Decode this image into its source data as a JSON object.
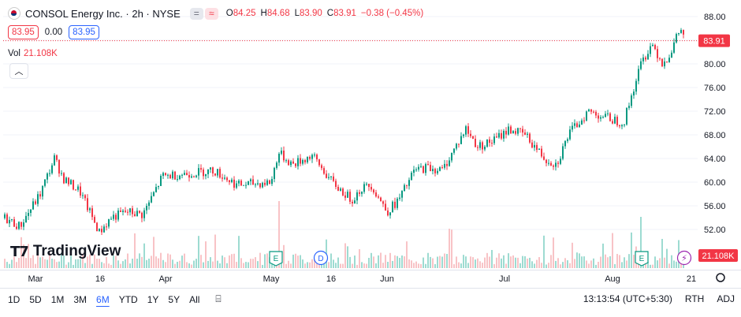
{
  "header": {
    "symbol_title": "CONSOL Energy Inc. · 2h · NYSE",
    "ohlc": {
      "o_label": "O",
      "o": "84.25",
      "h_label": "H",
      "h": "84.68",
      "l_label": "L",
      "l": "83.90",
      "c_label": "C",
      "c": "83.91",
      "change": "−0.38 (−0.45%)"
    },
    "pill_a": "=",
    "pill_b": "≈"
  },
  "quote": {
    "sell": "83.95",
    "spread": "0.00",
    "buy": "83.95"
  },
  "volume": {
    "label": "Vol",
    "value": "21.108K"
  },
  "branding": "TradingView",
  "price_tag": "83.91",
  "volume_tag": "21.108K",
  "event_markers": [
    {
      "label": "E",
      "date": "May 1",
      "color": "#089981"
    },
    {
      "label": "D",
      "date": "May 10",
      "color": "#2962ff"
    },
    {
      "label": "E",
      "date": "Aug 6",
      "color": "#089981"
    }
  ],
  "timeframes": [
    "1D",
    "5D",
    "1M",
    "3M",
    "6M",
    "YTD",
    "1Y",
    "5Y",
    "All"
  ],
  "selected_timeframe": "6M",
  "status": {
    "time": "13:13:54 (UTC+5:30)",
    "session": "RTH",
    "adj": "ADJ"
  },
  "chart_data": {
    "type": "candlestick",
    "title": "CONSOL Energy Inc. · 2h · NYSE",
    "ylim": [
      48,
      90
    ],
    "y_ticks": [
      52,
      56,
      60,
      64,
      68,
      72,
      76,
      80,
      84,
      88
    ],
    "x_tick_labels": [
      "Mar",
      "16",
      "Apr",
      "May",
      "16",
      "Jun",
      "Jul",
      "Aug",
      "21"
    ],
    "last_price": 83.91,
    "series": [
      {
        "name": "Price",
        "close_keypoints": [
          {
            "date": "Feb 20",
            "close": 54.0
          },
          {
            "date": "Feb 27",
            "close": 52.5
          },
          {
            "date": "Mar 3",
            "close": 58.0
          },
          {
            "date": "Mar 6",
            "close": 64.0
          },
          {
            "date": "Mar 10",
            "close": 60.5
          },
          {
            "date": "Mar 13",
            "close": 58.5
          },
          {
            "date": "Mar 16",
            "close": 51.5
          },
          {
            "date": "Mar 20",
            "close": 54.0
          },
          {
            "date": "Mar 24",
            "close": 55.0
          },
          {
            "date": "Mar 30",
            "close": 54.5
          },
          {
            "date": "Apr 3",
            "close": 57.0
          },
          {
            "date": "Apr 8",
            "close": 61.0
          },
          {
            "date": "Apr 14",
            "close": 61.5
          },
          {
            "date": "Apr 20",
            "close": 62.0
          },
          {
            "date": "Apr 25",
            "close": 59.5
          },
          {
            "date": "May 1",
            "close": 60.0
          },
          {
            "date": "May 2",
            "close": 65.0
          },
          {
            "date": "May 6",
            "close": 63.0
          },
          {
            "date": "May 10",
            "close": 64.5
          },
          {
            "date": "May 15",
            "close": 60.0
          },
          {
            "date": "May 20",
            "close": 57.0
          },
          {
            "date": "May 24",
            "close": 59.0
          },
          {
            "date": "May 28",
            "close": 59.5
          },
          {
            "date": "Jun 1",
            "close": 55.0
          },
          {
            "date": "Jun 5",
            "close": 57.0
          },
          {
            "date": "Jun 10",
            "close": 62.0
          },
          {
            "date": "Jun 14",
            "close": 62.5
          },
          {
            "date": "Jun 18",
            "close": 62.0
          },
          {
            "date": "Jun 24",
            "close": 69.0
          },
          {
            "date": "Jun 28",
            "close": 66.0
          },
          {
            "date": "Jul 3",
            "close": 67.0
          },
          {
            "date": "Jul 8",
            "close": 69.0
          },
          {
            "date": "Jul 14",
            "close": 68.0
          },
          {
            "date": "Jul 19",
            "close": 64.0
          },
          {
            "date": "Jul 23",
            "close": 63.0
          },
          {
            "date": "Jul 28",
            "close": 68.0
          },
          {
            "date": "Aug 1",
            "close": 72.0
          },
          {
            "date": "Aug 4",
            "close": 70.0
          },
          {
            "date": "Aug 5",
            "close": 80.0
          },
          {
            "date": "Aug 7",
            "close": 83.5
          },
          {
            "date": "Aug 10",
            "close": 80.0
          },
          {
            "date": "Aug 14",
            "close": 82.0
          },
          {
            "date": "Aug 17",
            "close": 86.0
          },
          {
            "date": "Aug 18",
            "close": 83.91
          }
        ]
      },
      {
        "name": "Vol",
        "current": "21.108K"
      }
    ]
  }
}
